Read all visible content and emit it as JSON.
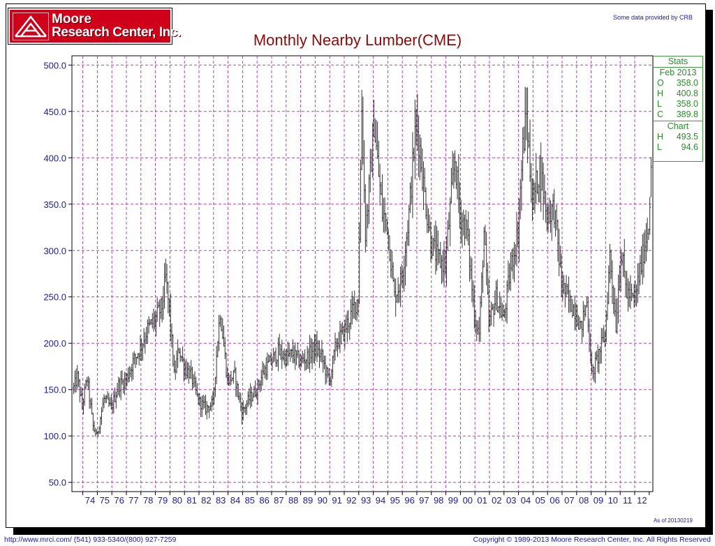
{
  "header": {
    "logo_line1": "Moore",
    "logo_line2": "Research Center, Inc.",
    "crb_note": "Some data provided by CRB"
  },
  "stats": {
    "heading": "Stats",
    "date": "Feb 2013",
    "rows": [
      {
        "k": "O",
        "v": "358.0"
      },
      {
        "k": "H",
        "v": "400.8"
      },
      {
        "k": "L",
        "v": "358.0"
      },
      {
        "k": "C",
        "v": "389.8"
      }
    ],
    "chart_heading": "Chart",
    "chart_rows": [
      {
        "k": "H",
        "v": "493.5"
      },
      {
        "k": "L",
        "v": "94.6"
      }
    ]
  },
  "footer": {
    "left": "http://www.mrci.com/   (541) 933-5340/(800) 927-7259",
    "right": "Copyright © 1989-2013 Moore Research Center, Inc. All Rights Reserved",
    "asof": "As of 20130219"
  },
  "colors": {
    "title": "#8b0a0a",
    "axis_text": "#1a1a9c",
    "grid": "#b040b0",
    "bars": "#333333",
    "stats": "#2a8c2a",
    "logo_bg": "#d0001a"
  },
  "chart_data": {
    "type": "ohlc",
    "title": "Monthly Nearby Lumber(CME)",
    "xlabel": "",
    "ylabel": "",
    "ylim": [
      40,
      510
    ],
    "yticks": [
      50,
      100,
      150,
      200,
      250,
      300,
      350,
      400,
      450,
      500
    ],
    "ytick_labels": [
      "50.0",
      "100.0",
      "150.0",
      "200.0",
      "250.0",
      "300.0",
      "350.0",
      "400.0",
      "450.0",
      "500.0"
    ],
    "x_labels": [
      "74",
      "75",
      "76",
      "77",
      "78",
      "79",
      "80",
      "81",
      "82",
      "83",
      "84",
      "85",
      "86",
      "87",
      "88",
      "89",
      "90",
      "91",
      "92",
      "93",
      "94",
      "95",
      "96",
      "97",
      "98",
      "99",
      "00",
      "01",
      "02",
      "03",
      "04",
      "05",
      "06",
      "07",
      "08",
      "09",
      "10",
      "11",
      "12"
    ],
    "grid": true,
    "series": [
      {
        "frequency": "monthly",
        "start": "1973-05",
        "end": "2013-02",
        "close_anchors": [
          [
            "1973-05",
            152
          ],
          [
            "1973-08",
            163
          ],
          [
            "1973-12",
            132
          ],
          [
            "1974-04",
            162
          ],
          [
            "1974-09",
            110
          ],
          [
            "1974-12",
            100
          ],
          [
            "1975-06",
            140
          ],
          [
            "1975-12",
            130
          ],
          [
            "1976-06",
            155
          ],
          [
            "1976-12",
            160
          ],
          [
            "1977-06",
            180
          ],
          [
            "1977-12",
            195
          ],
          [
            "1978-06",
            215
          ],
          [
            "1978-12",
            225
          ],
          [
            "1979-06",
            240
          ],
          [
            "1979-09",
            270
          ],
          [
            "1979-12",
            235
          ],
          [
            "1980-04",
            165
          ],
          [
            "1980-08",
            195
          ],
          [
            "1980-12",
            175
          ],
          [
            "1981-06",
            165
          ],
          [
            "1981-12",
            138
          ],
          [
            "1982-06",
            130
          ],
          [
            "1982-12",
            135
          ],
          [
            "1983-04",
            205
          ],
          [
            "1983-06",
            235
          ],
          [
            "1983-12",
            160
          ],
          [
            "1984-06",
            165
          ],
          [
            "1984-12",
            125
          ],
          [
            "1985-06",
            140
          ],
          [
            "1985-12",
            150
          ],
          [
            "1986-06",
            170
          ],
          [
            "1986-12",
            180
          ],
          [
            "1987-06",
            190
          ],
          [
            "1987-12",
            185
          ],
          [
            "1988-06",
            188
          ],
          [
            "1988-12",
            180
          ],
          [
            "1989-06",
            185
          ],
          [
            "1989-12",
            195
          ],
          [
            "1990-06",
            185
          ],
          [
            "1990-12",
            158
          ],
          [
            "1991-06",
            200
          ],
          [
            "1991-12",
            212
          ],
          [
            "1992-06",
            230
          ],
          [
            "1992-12",
            250
          ],
          [
            "1993-03",
            455
          ],
          [
            "1993-06",
            320
          ],
          [
            "1993-10",
            380
          ],
          [
            "1994-01",
            440
          ],
          [
            "1994-04",
            395
          ],
          [
            "1994-08",
            340
          ],
          [
            "1994-12",
            330
          ],
          [
            "1995-06",
            250
          ],
          [
            "1995-12",
            270
          ],
          [
            "1996-06",
            340
          ],
          [
            "1996-12",
            440
          ],
          [
            "1997-03",
            410
          ],
          [
            "1997-06",
            370
          ],
          [
            "1997-12",
            310
          ],
          [
            "1998-06",
            290
          ],
          [
            "1998-12",
            285
          ],
          [
            "1999-03",
            330
          ],
          [
            "1999-08",
            400
          ],
          [
            "1999-12",
            340
          ],
          [
            "2000-06",
            320
          ],
          [
            "2000-12",
            230
          ],
          [
            "2001-04",
            210
          ],
          [
            "2001-08",
            320
          ],
          [
            "2001-12",
            220
          ],
          [
            "2002-06",
            250
          ],
          [
            "2002-12",
            225
          ],
          [
            "2003-06",
            280
          ],
          [
            "2003-12",
            320
          ],
          [
            "2004-04",
            410
          ],
          [
            "2004-07",
            445
          ],
          [
            "2004-12",
            350
          ],
          [
            "2005-06",
            390
          ],
          [
            "2005-12",
            340
          ],
          [
            "2006-06",
            345
          ],
          [
            "2006-12",
            265
          ],
          [
            "2007-06",
            245
          ],
          [
            "2007-12",
            235
          ],
          [
            "2008-04",
            215
          ],
          [
            "2008-09",
            245
          ],
          [
            "2009-01",
            165
          ],
          [
            "2009-06",
            185
          ],
          [
            "2009-12",
            210
          ],
          [
            "2010-04",
            295
          ],
          [
            "2010-09",
            220
          ],
          [
            "2011-01",
            300
          ],
          [
            "2011-06",
            255
          ],
          [
            "2011-12",
            245
          ],
          [
            "2012-06",
            285
          ],
          [
            "2012-12",
            330
          ],
          [
            "2013-02",
            389.8
          ]
        ],
        "last_bar": {
          "date": "2013-02",
          "open": 358.0,
          "high": 400.8,
          "low": 358.0,
          "close": 389.8
        },
        "chart_high": 493.5,
        "chart_low": 94.6
      }
    ]
  }
}
